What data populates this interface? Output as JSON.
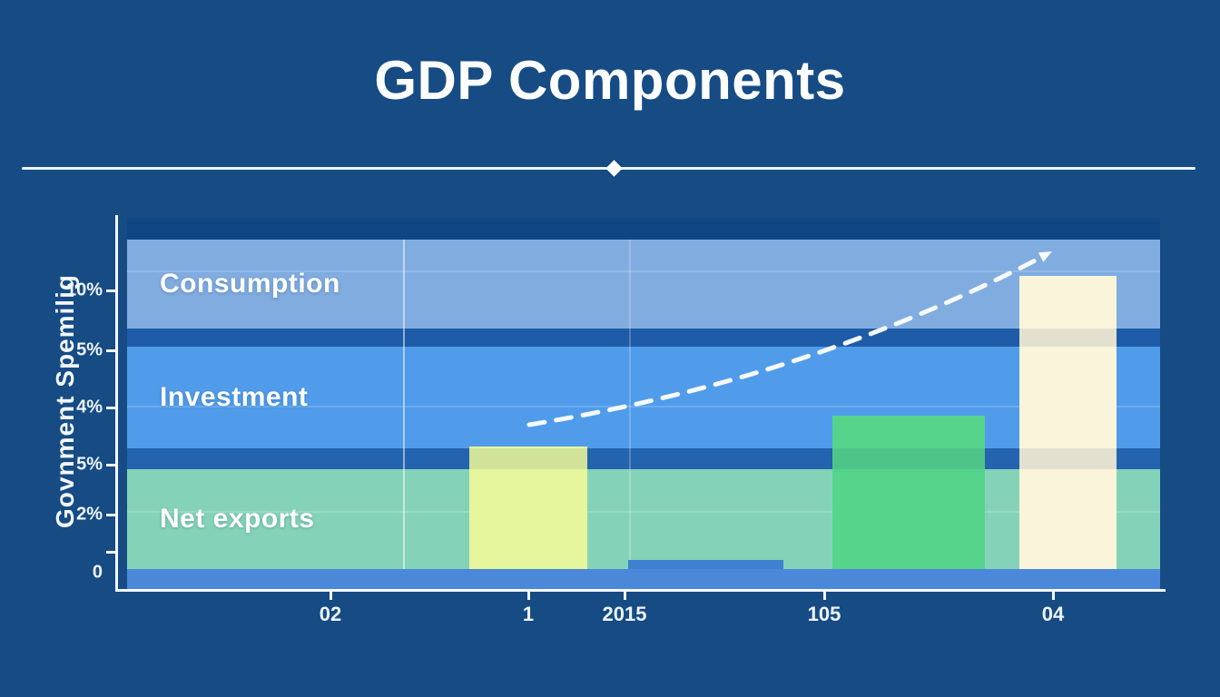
{
  "header": {
    "title": "GDP Components"
  },
  "chart_data": {
    "type": "bar",
    "title": "GDP Components",
    "y_axis": {
      "title": "Govnment Spemilig",
      "tick_labels": [
        "10%",
        "5%",
        "4%",
        "5%",
        "2%",
        "0"
      ]
    },
    "x_axis": {
      "tick_labels": [
        "02",
        "1",
        "2015",
        "105",
        "04"
      ]
    },
    "bands": [
      {
        "label": "Consumption",
        "color": "#80ace0"
      },
      {
        "label": "Investment",
        "color": "#509ceb"
      },
      {
        "label": "Net exports",
        "color": "#84d3b8"
      }
    ],
    "series": [
      {
        "name": "GDP component bars",
        "type": "bar",
        "points": [
          {
            "x": "1",
            "value_pct": 4.4,
            "color": "#e6f69d"
          },
          {
            "x": "2015",
            "value_pct": 0.3,
            "color": "#3f80d0"
          },
          {
            "x": "105",
            "value_pct": 5.5,
            "color": "#56d48c"
          },
          {
            "x": "04",
            "value_pct": 10.5,
            "color": "#faf4da"
          }
        ]
      },
      {
        "name": "trend",
        "type": "dashed-line-with-arrow",
        "color": "#ffffff",
        "points": [
          {
            "x": "1",
            "value_pct": 5.2
          },
          {
            "x": "04",
            "value_pct": 11.3
          }
        ]
      }
    ],
    "ylim": [
      0,
      12
    ],
    "grid": "faint",
    "legend": "none"
  },
  "colors": {
    "background": "#164b84",
    "plot_header_strip": "#0e4683",
    "separator_upper": "#1f5ca7",
    "separator_lower": "#2463ae",
    "bottom_strip": "#4c88da",
    "axis": "#f4f8fc",
    "text": "#ffffff"
  }
}
